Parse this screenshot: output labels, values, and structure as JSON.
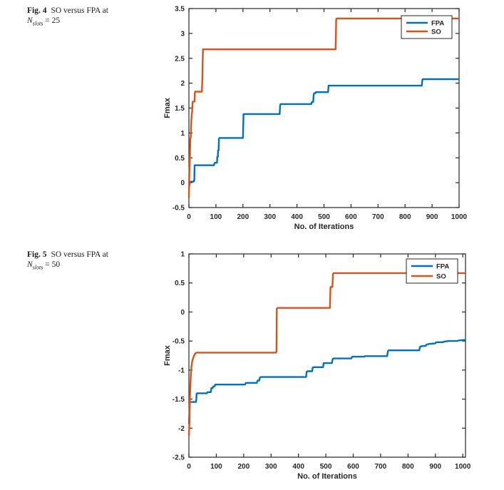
{
  "page": {
    "background": "#ffffff"
  },
  "colors": {
    "fpa": "#0072BD",
    "so": "#D95319",
    "axis": "#262626",
    "text": "#1a1a1a"
  },
  "figures": [
    {
      "caption": {
        "label": "Fig. 4",
        "text": "SO versus FPA at",
        "var": "N",
        "var_sub": "slots",
        "eq": "= 25"
      }
    },
    {
      "caption": {
        "label": "Fig. 5",
        "text": "SO versus FPA at",
        "var": "N",
        "var_sub": "slots",
        "eq": "= 50"
      }
    }
  ],
  "chart_data": [
    {
      "type": "line",
      "line_style": "step",
      "title": "",
      "xlabel": "No. of Iterations",
      "ylabel": "Fmax",
      "xlim": [
        0,
        1000
      ],
      "ylim": [
        -0.5,
        3.5
      ],
      "xticks": [
        0,
        100,
        200,
        300,
        400,
        500,
        600,
        700,
        800,
        900,
        1000
      ],
      "yticks": [
        -0.5,
        0,
        0.5,
        1,
        1.5,
        2,
        2.5,
        3,
        3.5
      ],
      "grid": false,
      "legend_position": "top-right",
      "series": [
        {
          "name": "FPA",
          "color": "#0072BD",
          "points": [
            [
              0,
              -0.12
            ],
            [
              3,
              0.0
            ],
            [
              5,
              0.02
            ],
            [
              18,
              0.02
            ],
            [
              19,
              0.05
            ],
            [
              20,
              0.05
            ],
            [
              21,
              0.35
            ],
            [
              93,
              0.35
            ],
            [
              94,
              0.38
            ],
            [
              96,
              0.4
            ],
            [
              104,
              0.4
            ],
            [
              105,
              0.52
            ],
            [
              107,
              0.52
            ],
            [
              108,
              0.65
            ],
            [
              110,
              0.65
            ],
            [
              111,
              0.88
            ],
            [
              113,
              0.9
            ],
            [
              200,
              0.9
            ],
            [
              202,
              1.38
            ],
            [
              336,
              1.38
            ],
            [
              338,
              1.57
            ],
            [
              340,
              1.58
            ],
            [
              453,
              1.58
            ],
            [
              455,
              1.62
            ],
            [
              460,
              1.62
            ],
            [
              462,
              1.78
            ],
            [
              464,
              1.8
            ],
            [
              468,
              1.8
            ],
            [
              470,
              1.82
            ],
            [
              515,
              1.82
            ],
            [
              517,
              1.95
            ],
            [
              862,
              1.95
            ],
            [
              864,
              2.07
            ],
            [
              866,
              2.08
            ],
            [
              1000,
              2.08
            ]
          ]
        },
        {
          "name": "SO",
          "color": "#D95319",
          "points": [
            [
              0,
              -0.3
            ],
            [
              1,
              0.05
            ],
            [
              2,
              0.3
            ],
            [
              3,
              0.35
            ],
            [
              4,
              0.6
            ],
            [
              5,
              0.88
            ],
            [
              7,
              0.92
            ],
            [
              8,
              1.1
            ],
            [
              9,
              1.25
            ],
            [
              11,
              1.4
            ],
            [
              12,
              1.42
            ],
            [
              13,
              1.55
            ],
            [
              14,
              1.62
            ],
            [
              15,
              1.63
            ],
            [
              21,
              1.63
            ],
            [
              22,
              1.8
            ],
            [
              23,
              1.83
            ],
            [
              48,
              1.83
            ],
            [
              50,
              2.1
            ],
            [
              51,
              2.4
            ],
            [
              52,
              2.68
            ],
            [
              543,
              2.68
            ],
            [
              545,
              3.28
            ],
            [
              547,
              3.3
            ],
            [
              1000,
              3.3
            ]
          ]
        }
      ]
    },
    {
      "type": "line",
      "line_style": "step",
      "title": "",
      "xlabel": "No. of Iterations",
      "ylabel": "Fmax",
      "xlim": [
        0,
        1010
      ],
      "ylim": [
        -2.5,
        1
      ],
      "xticks": [
        0,
        100,
        200,
        300,
        400,
        500,
        600,
        700,
        800,
        900,
        1000
      ],
      "yticks": [
        -2.5,
        -2,
        -1.5,
        -1,
        -0.5,
        0,
        0.5,
        1
      ],
      "grid": false,
      "legend_position": "top-right",
      "series": [
        {
          "name": "FPA",
          "color": "#0072BD",
          "points": [
            [
              0,
              -1.93
            ],
            [
              2,
              -1.7
            ],
            [
              3,
              -1.56
            ],
            [
              5,
              -1.55
            ],
            [
              26,
              -1.55
            ],
            [
              27,
              -1.5
            ],
            [
              28,
              -1.41
            ],
            [
              30,
              -1.4
            ],
            [
              66,
              -1.4
            ],
            [
              68,
              -1.38
            ],
            [
              80,
              -1.38
            ],
            [
              82,
              -1.31
            ],
            [
              87,
              -1.31
            ],
            [
              89,
              -1.28
            ],
            [
              94,
              -1.28
            ],
            [
              96,
              -1.25
            ],
            [
              205,
              -1.25
            ],
            [
              208,
              -1.22
            ],
            [
              248,
              -1.22
            ],
            [
              251,
              -1.18
            ],
            [
              257,
              -1.18
            ],
            [
              259,
              -1.13
            ],
            [
              263,
              -1.12
            ],
            [
              428,
              -1.12
            ],
            [
              430,
              -1.03
            ],
            [
              433,
              -1.02
            ],
            [
              450,
              -1.02
            ],
            [
              452,
              -0.96
            ],
            [
              455,
              -0.95
            ],
            [
              490,
              -0.95
            ],
            [
              492,
              -0.88
            ],
            [
              522,
              -0.88
            ],
            [
              525,
              -0.81
            ],
            [
              528,
              -0.8
            ],
            [
              593,
              -0.8
            ],
            [
              596,
              -0.77
            ],
            [
              640,
              -0.77
            ],
            [
              643,
              -0.76
            ],
            [
              724,
              -0.76
            ],
            [
              727,
              -0.67
            ],
            [
              730,
              -0.66
            ],
            [
              841,
              -0.66
            ],
            [
              844,
              -0.6
            ],
            [
              848,
              -0.59
            ],
            [
              865,
              -0.58
            ],
            [
              868,
              -0.56
            ],
            [
              878,
              -0.55
            ],
            [
              900,
              -0.54
            ],
            [
              903,
              -0.52
            ],
            [
              928,
              -0.52
            ],
            [
              931,
              -0.51
            ],
            [
              950,
              -0.5
            ],
            [
              980,
              -0.5
            ],
            [
              985,
              -0.49
            ],
            [
              1010,
              -0.48
            ]
          ]
        },
        {
          "name": "SO",
          "color": "#D95319",
          "points": [
            [
              0,
              -2.13
            ],
            [
              2,
              -1.9
            ],
            [
              3,
              -1.55
            ],
            [
              5,
              -1.3
            ],
            [
              7,
              -1.1
            ],
            [
              9,
              -0.95
            ],
            [
              12,
              -0.85
            ],
            [
              15,
              -0.8
            ],
            [
              18,
              -0.76
            ],
            [
              22,
              -0.72
            ],
            [
              27,
              -0.7
            ],
            [
              318,
              -0.7
            ],
            [
              320,
              -0.68
            ],
            [
              321,
              0.05
            ],
            [
              323,
              0.07
            ],
            [
              515,
              0.07
            ],
            [
              517,
              0.43
            ],
            [
              524,
              0.43
            ],
            [
              526,
              0.65
            ],
            [
              528,
              0.67
            ],
            [
              1010,
              0.67
            ]
          ]
        }
      ]
    }
  ]
}
